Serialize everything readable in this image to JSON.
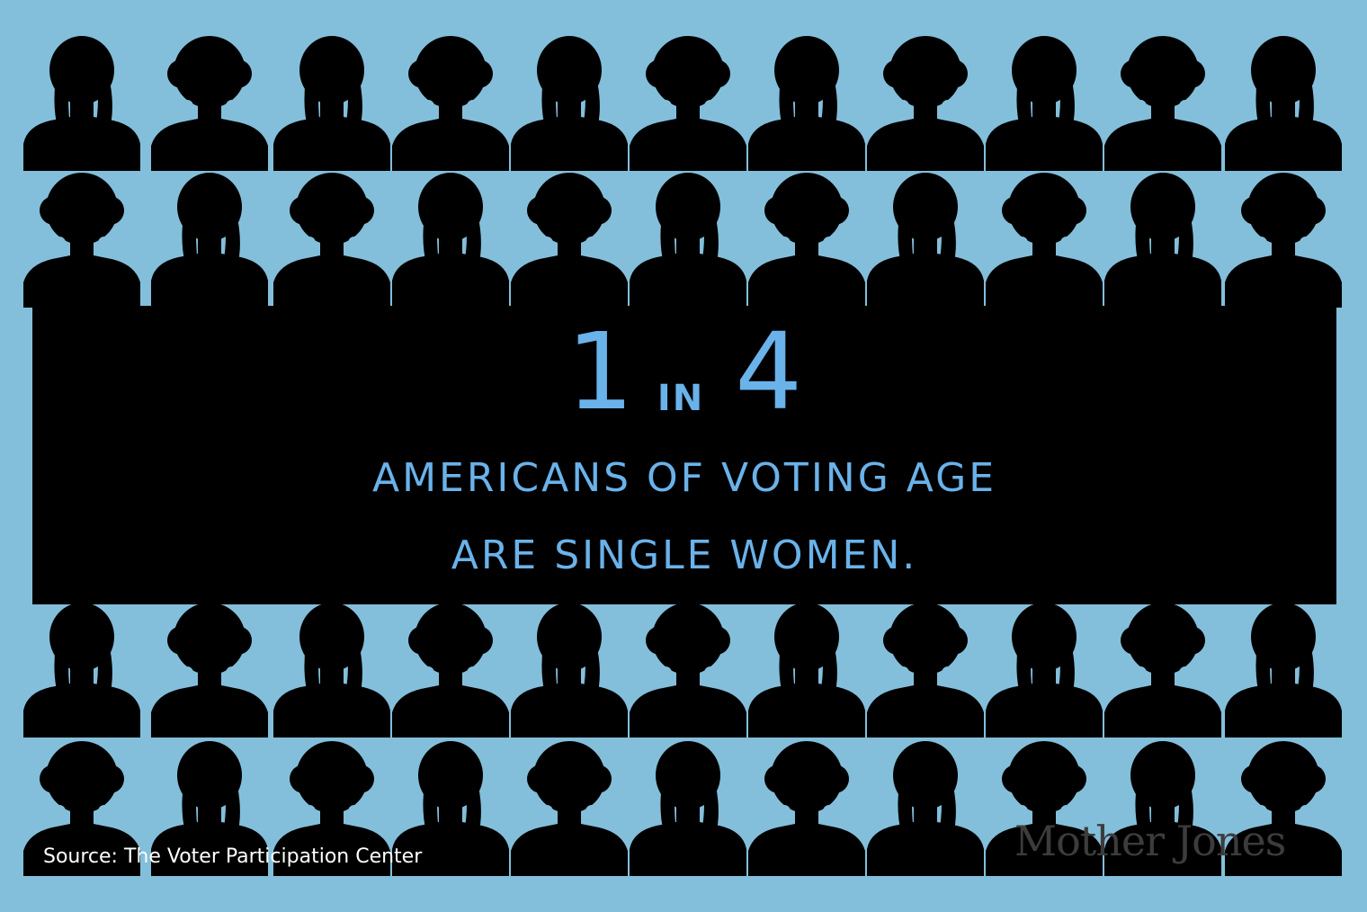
{
  "headline": {
    "number_a": "1",
    "connector": "IN",
    "number_b": "4",
    "line1": "AMERICANS OF VOTING AGE",
    "line2": "ARE SINGLE WOMEN."
  },
  "source": "Source: The Voter Participation Center",
  "logo": {
    "text": "Mother Jones",
    "icon": "mother-jones-wordmark"
  },
  "crowd": {
    "icon": "woman-silhouette-icon",
    "rows": 4,
    "columns": 11
  },
  "colors": {
    "background": "#83bfdb",
    "silhouette": "#000000",
    "headline": "#6ab2ea",
    "source_text": "#ffffff",
    "logo_text": "#3c3c3c"
  }
}
